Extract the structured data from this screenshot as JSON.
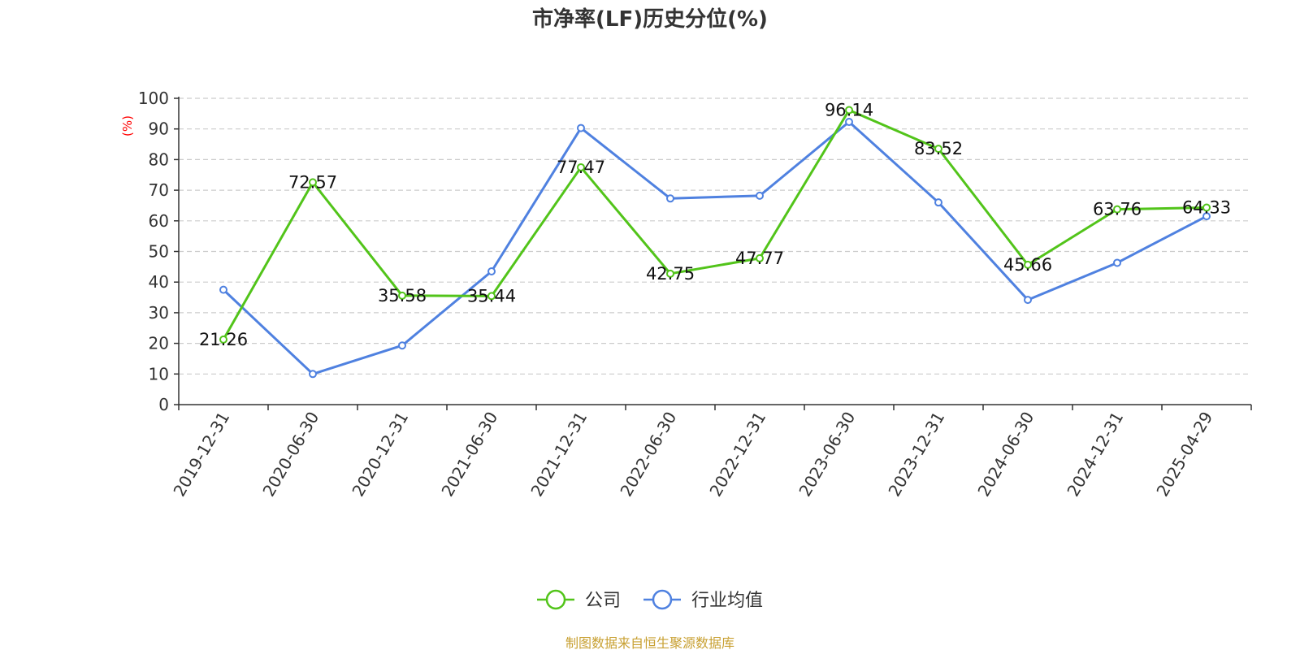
{
  "chart_data": {
    "type": "line",
    "title": "市净率(LF)历史分位(%)",
    "ylabel": "(%)",
    "ylim": [
      0,
      100
    ],
    "yticks": [
      0,
      10,
      20,
      30,
      40,
      50,
      60,
      70,
      80,
      90,
      100
    ],
    "categories": [
      "2019-12-31",
      "2020-06-30",
      "2020-12-31",
      "2021-06-30",
      "2021-12-31",
      "2022-06-30",
      "2022-12-31",
      "2023-06-30",
      "2023-12-31",
      "2024-06-30",
      "2024-12-31",
      "2025-04-29"
    ],
    "series": [
      {
        "name": "公司",
        "color": "#52c41a",
        "values": [
          21.26,
          72.57,
          35.58,
          35.44,
          77.47,
          42.75,
          47.77,
          96.14,
          83.52,
          45.66,
          63.76,
          64.33
        ],
        "labels": [
          "21.26",
          "72.57",
          "35.58",
          "35.44",
          "77.47",
          "42.75",
          "47.77",
          "96.14",
          "83.52",
          "45.66",
          "63.76",
          "64.33"
        ]
      },
      {
        "name": "行业均值",
        "color": "#4f81e0",
        "values": [
          37.5,
          10.0,
          19.3,
          43.5,
          90.3,
          67.3,
          68.2,
          92.3,
          66.0,
          34.2,
          46.3,
          61.5
        ]
      }
    ],
    "grid": true,
    "legend_position": "bottom-center",
    "source": "制图数据来自恒生聚源数据库",
    "unit_color": "#ff0000",
    "source_color": "#c8a032"
  }
}
